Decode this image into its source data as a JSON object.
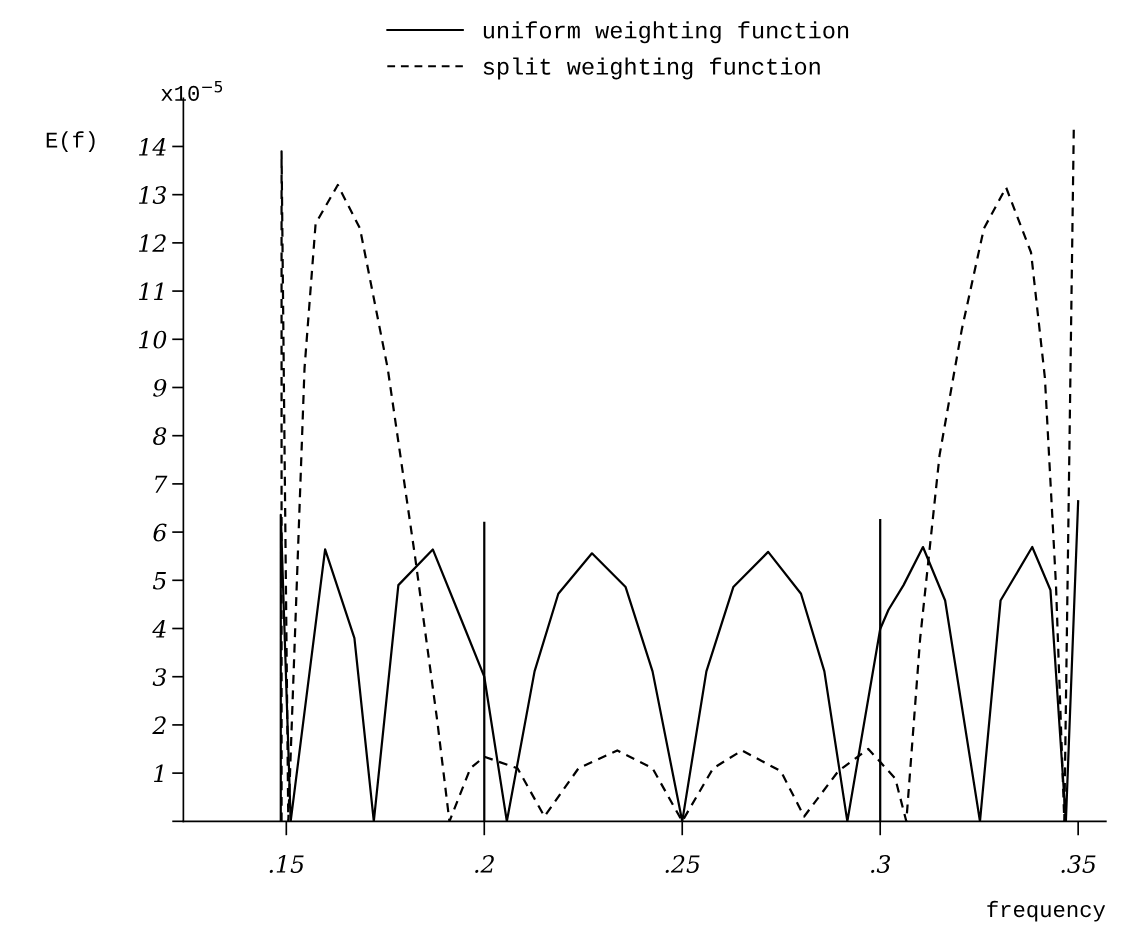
{
  "chart_data": {
    "type": "line",
    "xlabel": "frequency",
    "ylabel": "E(f)",
    "annotations": [
      "x10$^{−5}$"
    ],
    "xlim": [
      0.124,
      0.357
    ],
    "ylim": [
      0,
      15
    ],
    "xticks": [
      {
        "value": 0.15,
        "label": ".15"
      },
      {
        "value": 0.2,
        "label": ".2"
      },
      {
        "value": 0.25,
        "label": ".25"
      },
      {
        "value": 0.3,
        "label": ".3"
      },
      {
        "value": 0.35,
        "label": ".35"
      }
    ],
    "yticks": [
      {
        "value": 0,
        "label": null
      },
      1,
      2,
      3,
      4,
      5,
      6,
      7,
      8,
      9,
      10,
      11,
      12,
      13,
      14
    ],
    "grid": false,
    "legend": "top",
    "marker": "none",
    "series": [
      {
        "name": "uniform weighting function",
        "color": "#000000",
        "line_style": "solid",
        "x": [
          0.1486,
          0.1486,
          0.1511,
          0.1598,
          0.1672,
          0.1721,
          0.1783,
          0.187,
          0.1951,
          0.2,
          0.2057,
          0.2127,
          0.2187,
          0.2272,
          0.2357,
          0.2425,
          0.25,
          0.2561,
          0.2629,
          0.2717,
          0.28,
          0.2859,
          0.2917,
          0.3,
          0.3021,
          0.3059,
          0.3108,
          0.3164,
          0.3252,
          0.3304,
          0.3384,
          0.343,
          0.3469,
          0.35
        ],
        "values": [
          0,
          6.36,
          0,
          5.64,
          3.8,
          0,
          4.9,
          5.64,
          4.0,
          3.0,
          0,
          3.11,
          4.72,
          5.56,
          4.86,
          3.11,
          0,
          3.11,
          4.86,
          5.59,
          4.72,
          3.11,
          0,
          3.99,
          4.39,
          4.9,
          5.69,
          4.58,
          0,
          4.58,
          5.69,
          4.8,
          0,
          6.64
        ]
      },
      {
        "name": "split weighting function",
        "color": "#000000",
        "line_style": "dashed",
        "x": [
          0.1488,
          0.1488,
          0.1505,
          0.1546,
          0.1574,
          0.163,
          0.1686,
          0.1756,
          0.1825,
          0.1881,
          0.1912,
          0.1965,
          0.2,
          0.2084,
          0.2152,
          0.2238,
          0.2336,
          0.2425,
          0.25,
          0.2578,
          0.2651,
          0.2749,
          0.2808,
          0.2894,
          0.297,
          0.3038,
          0.3066,
          0.3101,
          0.315,
          0.3206,
          0.3262,
          0.3318,
          0.3381,
          0.3416,
          0.3444,
          0.3465,
          0.3489
        ],
        "values": [
          0,
          13.9,
          0,
          9.4,
          12.4,
          13.2,
          12.3,
          9.4,
          5.5,
          2.1,
          0,
          1.1,
          1.34,
          1.1,
          0.1,
          1.1,
          1.47,
          1.1,
          0,
          1.1,
          1.47,
          1.04,
          0.1,
          1.04,
          1.5,
          0.89,
          0,
          3.8,
          7.6,
          10.2,
          12.3,
          13.15,
          11.8,
          9.2,
          4.9,
          0,
          14.4
        ]
      },
      {
        "color": "#000000",
        "line_style": "solid",
        "x": [
          0.2,
          0.2
        ],
        "values": [
          0,
          6.19
        ]
      },
      {
        "color": "#000000",
        "line_style": "solid",
        "x": [
          0.3,
          0.3
        ],
        "values": [
          0,
          6.25
        ]
      }
    ]
  }
}
